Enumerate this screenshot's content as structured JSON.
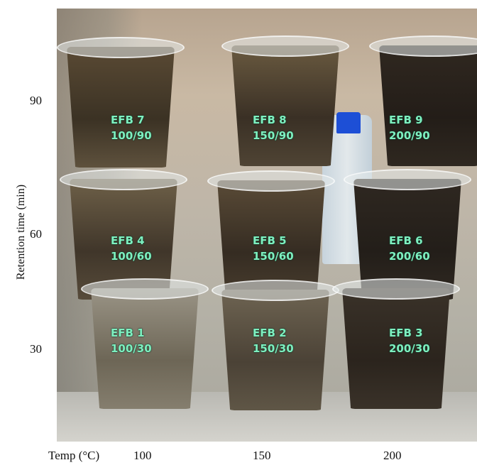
{
  "axis": {
    "ylabel": "Retention time (min)",
    "yticks": [
      "90",
      "60",
      "30"
    ],
    "xlabel": "Temp (°C)",
    "xticks": [
      "100",
      "150",
      "200"
    ]
  },
  "samples": [
    {
      "name": "EFB 7",
      "condition": "100/90"
    },
    {
      "name": "EFB 8",
      "condition": "150/90"
    },
    {
      "name": "EFB 9",
      "condition": "200/90"
    },
    {
      "name": "EFB 4",
      "condition": "100/60"
    },
    {
      "name": "EFB 5",
      "condition": "150/60"
    },
    {
      "name": "EFB 6",
      "condition": "200/60"
    },
    {
      "name": "EFB 1",
      "condition": "100/30"
    },
    {
      "name": "EFB 2",
      "condition": "150/30"
    },
    {
      "name": "EFB 3",
      "condition": "200/30"
    }
  ],
  "colors": {
    "label_text": "#7ef0c0",
    "bottle_cap": "#1d4fd6"
  }
}
